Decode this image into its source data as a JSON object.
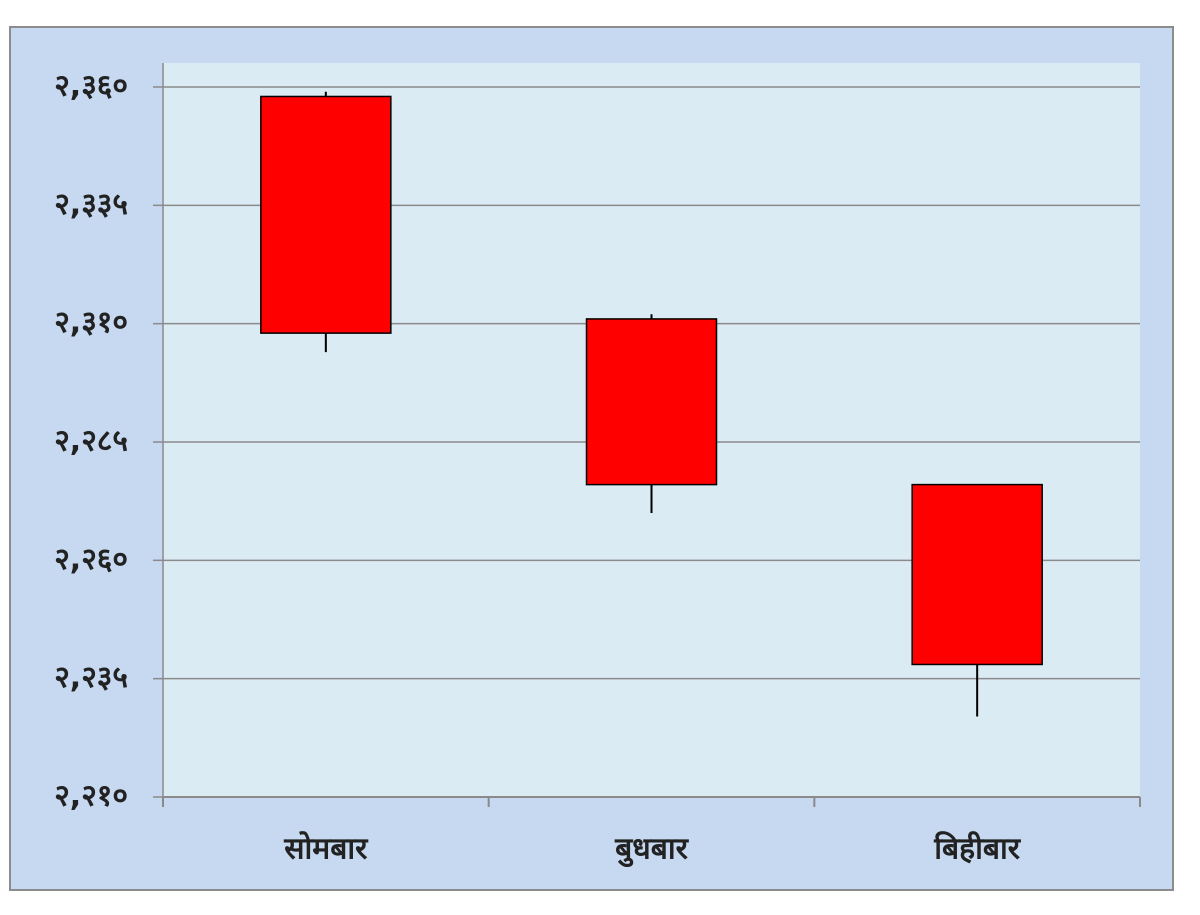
{
  "chart_data": {
    "type": "candlestick",
    "categories": [
      "सोमबार",
      "बुधबार",
      "बिहीबार"
    ],
    "series": [
      {
        "color": "#ff0000",
        "open": [
          2358,
          2311,
          2276
        ],
        "high": [
          2359,
          2312,
          2276
        ],
        "low": [
          2304,
          2270,
          2227
        ],
        "close": [
          2308,
          2276,
          2238
        ]
      }
    ],
    "ylim": [
      2210,
      2360
    ],
    "yticks": [
      {
        "value": 2210,
        "label": "२,२१०"
      },
      {
        "value": 2235,
        "label": "२,२३५"
      },
      {
        "value": 2260,
        "label": "२,२६०"
      },
      {
        "value": 2285,
        "label": "२,२८५"
      },
      {
        "value": 2310,
        "label": "२,३१०"
      },
      {
        "value": 2335,
        "label": "२,३३५"
      },
      {
        "value": 2360,
        "label": "२,३६०"
      }
    ],
    "grid": true
  }
}
